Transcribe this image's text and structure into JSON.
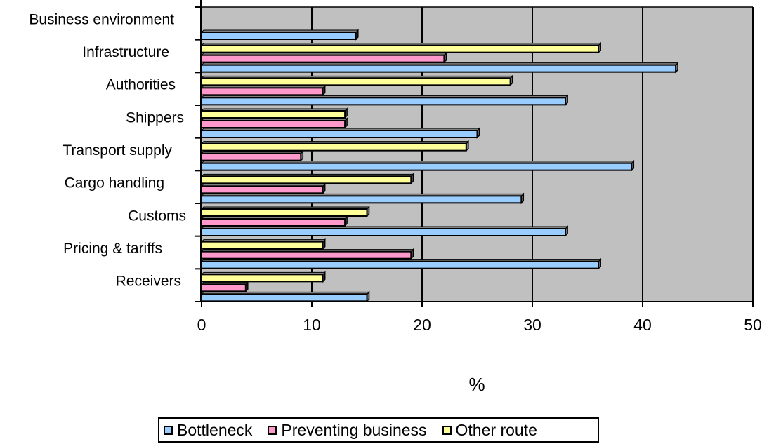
{
  "chart_data": {
    "type": "bar",
    "orientation": "horizontal",
    "categories": [
      "Business environment",
      "Infrastructure",
      "Authorities",
      "Shippers",
      "Transport supply",
      "Cargo handling",
      "Customs",
      "Pricing & tariffs",
      "Receivers"
    ],
    "series": [
      {
        "name": "Bottleneck",
        "color": "#99ccff",
        "values": [
          14,
          43,
          33,
          25,
          39,
          29,
          33,
          36,
          15
        ]
      },
      {
        "name": "Preventing business",
        "color": "#ff99cc",
        "values": [
          0,
          22,
          11,
          13,
          9,
          11,
          13,
          19,
          4
        ]
      },
      {
        "name": "Other route",
        "color": "#ffff99",
        "values": [
          0,
          36,
          28,
          13,
          24,
          19,
          15,
          11,
          11
        ]
      }
    ],
    "xlabel": "%",
    "xlim": [
      0,
      50
    ],
    "xticks": [
      "0",
      "10",
      "20",
      "30",
      "40",
      "50"
    ],
    "grid": "vertical",
    "plot_background": "#c0c0c0",
    "legend_position": "bottom"
  }
}
